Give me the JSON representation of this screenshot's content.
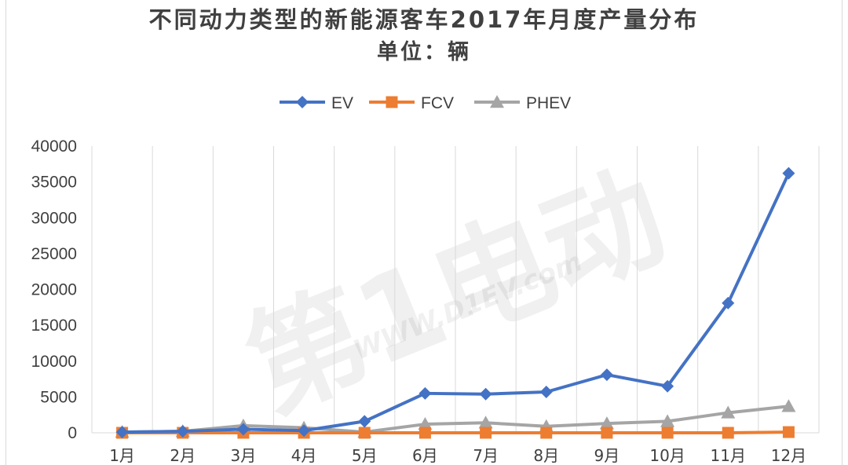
{
  "chart_data": {
    "type": "line",
    "title": "不同动力类型的新能源客车2017年月度产量分布",
    "subtitle": "单位：辆",
    "categories": [
      "1月",
      "2月",
      "3月",
      "4月",
      "5月",
      "6月",
      "7月",
      "8月",
      "9月",
      "10月",
      "11月",
      "12月"
    ],
    "series": [
      {
        "name": "EV",
        "color": "#4472c4",
        "marker": "diamond",
        "values": [
          100,
          200,
          500,
          300,
          1600,
          5500,
          5400,
          5700,
          8100,
          6500,
          18100,
          36200
        ]
      },
      {
        "name": "FCV",
        "color": "#ed7d31",
        "marker": "square",
        "values": [
          0,
          0,
          0,
          0,
          0,
          0,
          0,
          0,
          0,
          0,
          0,
          100
        ]
      },
      {
        "name": "PHEV",
        "color": "#a5a5a5",
        "marker": "triangle",
        "values": [
          100,
          200,
          1000,
          700,
          100,
          1200,
          1400,
          900,
          1300,
          1600,
          2800,
          3700
        ]
      }
    ],
    "ylim": [
      0,
      40000
    ],
    "yticks": [
      "0",
      "5000",
      "10000",
      "15000",
      "20000",
      "25000",
      "30000",
      "35000",
      "40000"
    ],
    "xlabel": "",
    "ylabel": "",
    "legend_position": "top",
    "grid": "vertical",
    "gridline_color": "#d9d9d9"
  },
  "watermark": {
    "text": "第1电动",
    "url_text": "WWW.D1EV.com"
  }
}
